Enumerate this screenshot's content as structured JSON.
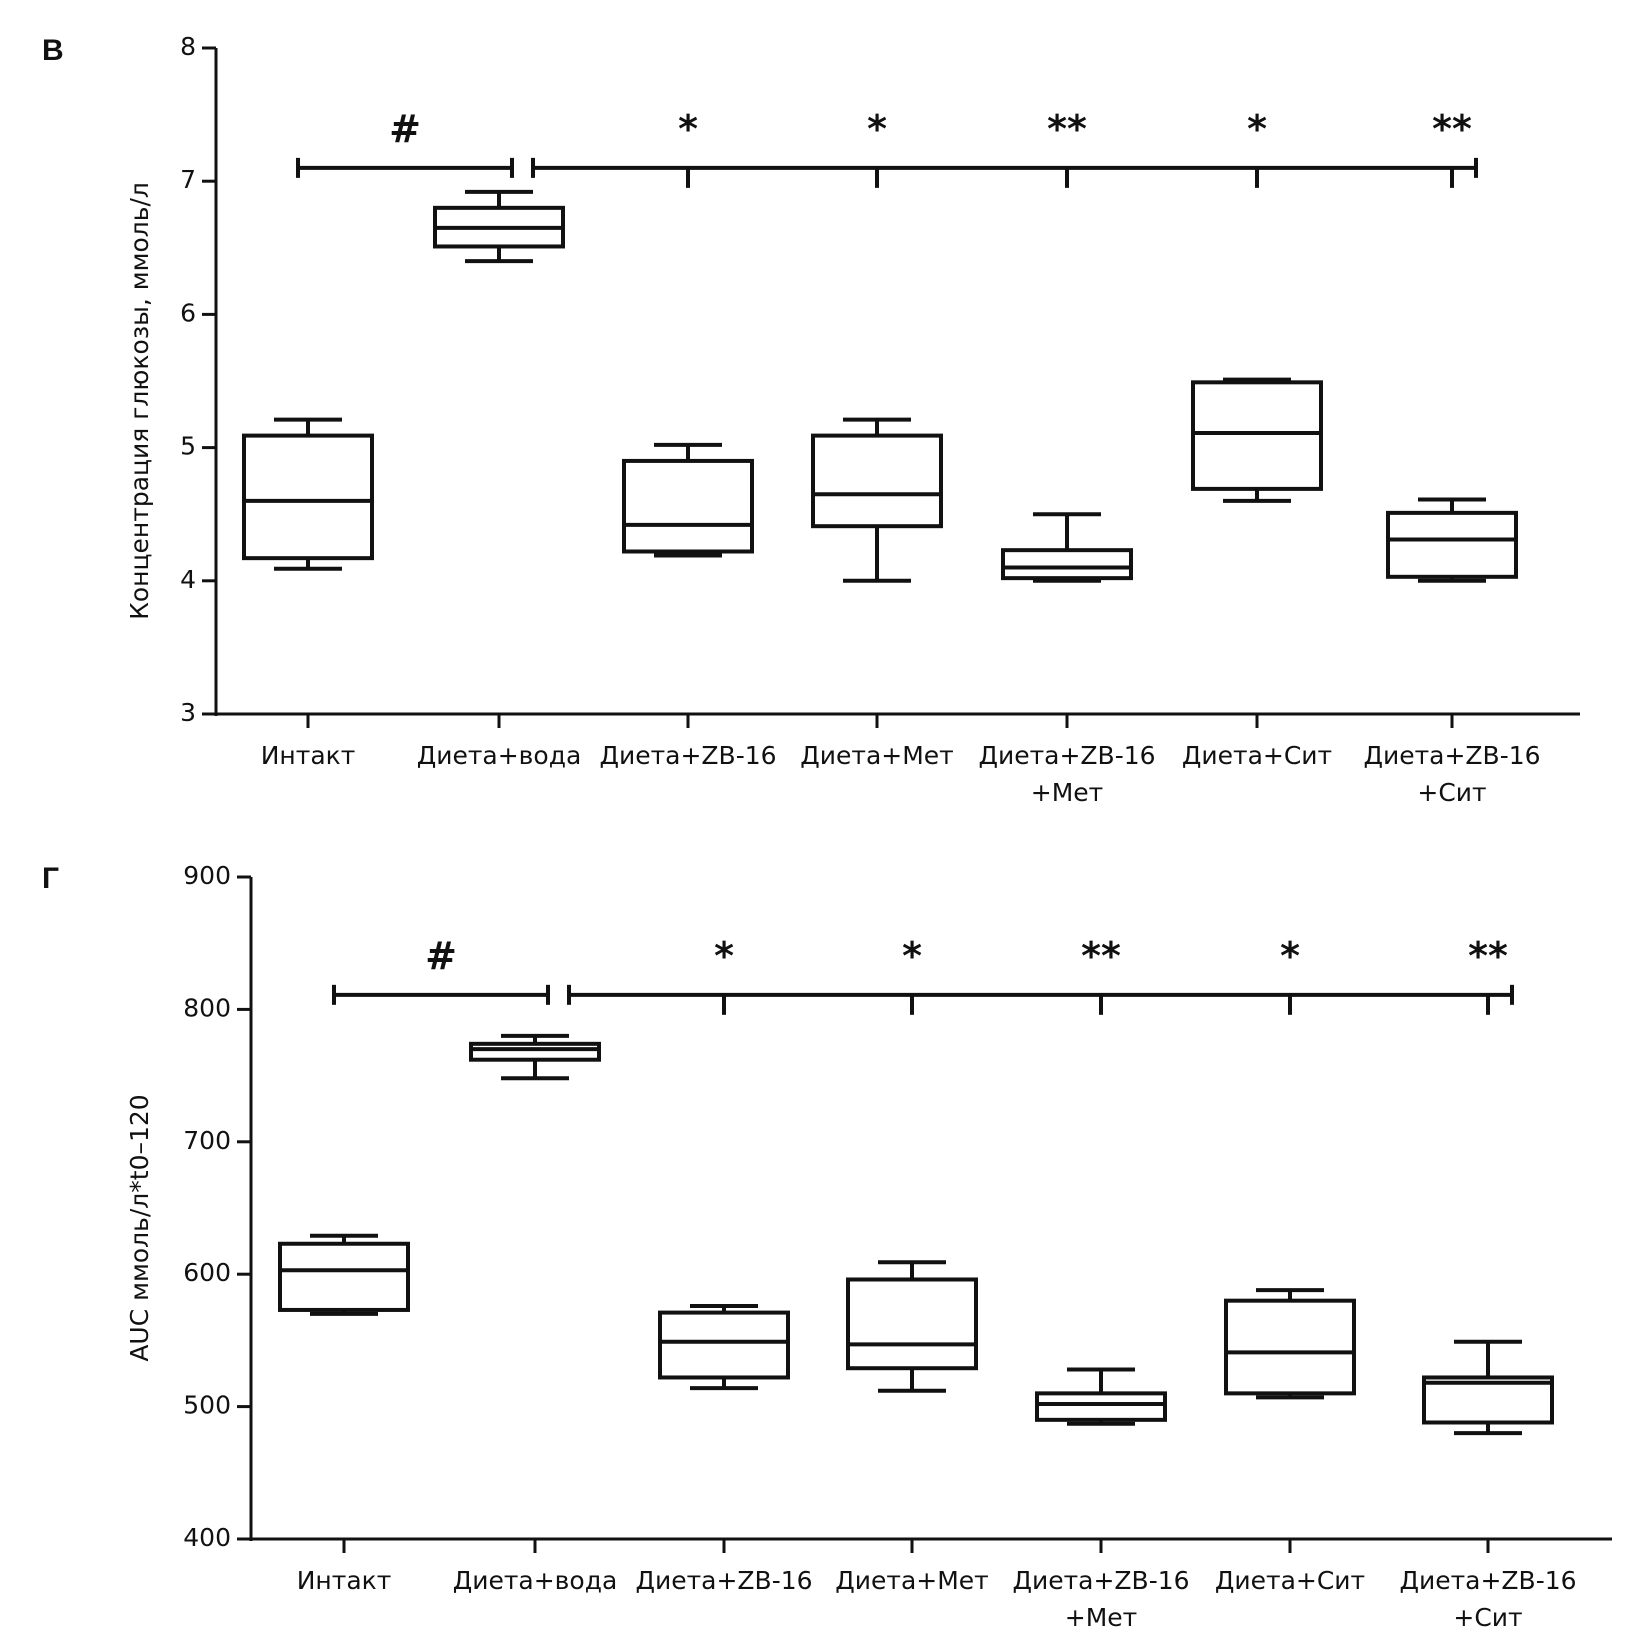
{
  "chart_data": [
    {
      "type": "box",
      "panel_label": "В",
      "title": "",
      "xlabel": "",
      "ylabel": "Концентрация глюкозы, ммоль/л",
      "ylim": [
        3,
        8
      ],
      "yticks": [
        3,
        4,
        5,
        6,
        7,
        8
      ],
      "categories": [
        [
          "Интакт"
        ],
        [
          "Диета+вода"
        ],
        [
          "Диета+ZB-16"
        ],
        [
          "Диета+Мет"
        ],
        [
          "Диета+ZB-16",
          "+Мет"
        ],
        [
          "Диета+Сит"
        ],
        [
          "Диета+ZB-16",
          "+Сит"
        ]
      ],
      "boxes": [
        {
          "min": 4.09,
          "q1": 4.17,
          "median": 4.6,
          "q3": 5.09,
          "max": 5.21
        },
        {
          "min": 6.4,
          "q1": 6.51,
          "median": 6.65,
          "q3": 6.8,
          "max": 6.92
        },
        {
          "min": 4.19,
          "q1": 4.22,
          "median": 4.42,
          "q3": 4.9,
          "max": 5.02
        },
        {
          "min": 4.0,
          "q1": 4.41,
          "median": 4.65,
          "q3": 5.09,
          "max": 5.21
        },
        {
          "min": 4.0,
          "q1": 4.02,
          "median": 4.1,
          "q3": 4.23,
          "max": 4.5
        },
        {
          "min": 4.6,
          "q1": 4.69,
          "median": 5.11,
          "q3": 5.49,
          "max": 5.51
        },
        {
          "min": 4.0,
          "q1": 4.03,
          "median": 4.31,
          "q3": 4.51,
          "max": 4.61
        }
      ],
      "significance": {
        "bar_level": 7.1,
        "left_bar": {
          "from": 0,
          "to": 1,
          "label": "#"
        },
        "right_bar": {
          "from": 1,
          "to": 6
        },
        "marks": [
          {
            "category": 2,
            "label": "*"
          },
          {
            "category": 3,
            "label": "*"
          },
          {
            "category": 4,
            "label": "**"
          },
          {
            "category": 5,
            "label": "*"
          },
          {
            "category": 6,
            "label": "**"
          }
        ]
      }
    },
    {
      "type": "box",
      "panel_label": "Г",
      "title": "",
      "xlabel": "",
      "ylabel": "AUC ммоль/л*t0–120",
      "ylim": [
        400,
        900
      ],
      "yticks": [
        400,
        500,
        600,
        700,
        800,
        900
      ],
      "categories": [
        [
          "Интакт"
        ],
        [
          "Диета+вода"
        ],
        [
          "Диета+ZB-16"
        ],
        [
          "Диета+Мет"
        ],
        [
          "Диета+ZB-16",
          "+Мет"
        ],
        [
          "Диета+Сит"
        ],
        [
          "Диета+ZB-16",
          "+Сит"
        ]
      ],
      "boxes": [
        {
          "min": 570,
          "q1": 573,
          "median": 603,
          "q3": 623,
          "max": 629
        },
        {
          "min": 748,
          "q1": 762,
          "median": 770,
          "q3": 774,
          "max": 780
        },
        {
          "min": 514,
          "q1": 522,
          "median": 549,
          "q3": 571,
          "max": 576
        },
        {
          "min": 512,
          "q1": 529,
          "median": 547,
          "q3": 596,
          "max": 609
        },
        {
          "min": 487,
          "q1": 490,
          "median": 502,
          "q3": 510,
          "max": 528
        },
        {
          "min": 507,
          "q1": 510,
          "median": 541,
          "q3": 580,
          "max": 588
        },
        {
          "min": 480,
          "q1": 488,
          "median": 518,
          "q3": 522,
          "max": 549
        }
      ],
      "significance": {
        "bar_level": 811,
        "left_bar": {
          "from": 0,
          "to": 1,
          "label": "#"
        },
        "right_bar": {
          "from": 1,
          "to": 6
        },
        "marks": [
          {
            "category": 2,
            "label": "*"
          },
          {
            "category": 3,
            "label": "*"
          },
          {
            "category": 4,
            "label": "**"
          },
          {
            "category": 5,
            "label": "*"
          },
          {
            "category": 6,
            "label": "**"
          }
        ]
      }
    }
  ]
}
